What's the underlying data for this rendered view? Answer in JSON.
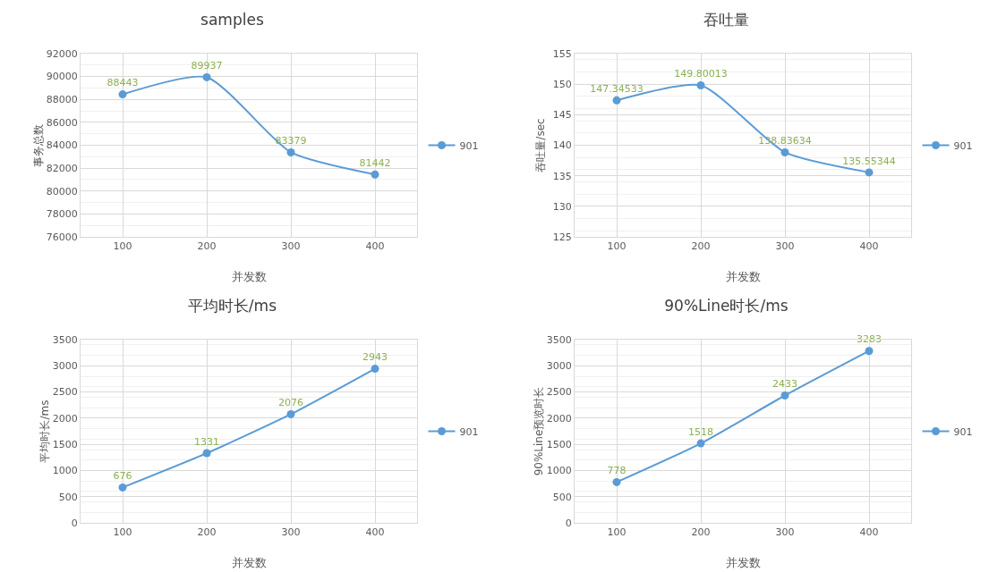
{
  "chart_data": [
    {
      "type": "line",
      "title": "samples",
      "xlabel": "并发数",
      "ylabel": "事务总数",
      "categories": [
        "100",
        "200",
        "300",
        "400"
      ],
      "series": [
        {
          "name": "901",
          "color": "#5b9bd5",
          "values": [
            88443,
            89937,
            83379,
            81442
          ]
        }
      ],
      "ylim": [
        76000,
        92000
      ],
      "yticks": [
        76000,
        78000,
        80000,
        82000,
        84000,
        86000,
        88000,
        90000,
        92000
      ],
      "grid": true,
      "legend": "right",
      "marker": "circle",
      "line_style": "solid",
      "data_labels": true
    },
    {
      "type": "line",
      "title": "吞吐量",
      "xlabel": "并发数",
      "ylabel": "吞吐量/sec",
      "categories": [
        "100",
        "200",
        "300",
        "400"
      ],
      "series": [
        {
          "name": "901",
          "color": "#5b9bd5",
          "values": [
            147.34533,
            149.80013,
            138.83634,
            135.55344
          ]
        }
      ],
      "ylim": [
        125,
        155
      ],
      "yticks": [
        125,
        130,
        135,
        140,
        145,
        150,
        155
      ],
      "grid": true,
      "legend": "right",
      "marker": "circle",
      "line_style": "solid",
      "data_labels": true
    },
    {
      "type": "line",
      "title": "平均时长/ms",
      "xlabel": "并发数",
      "ylabel": "平均时长/ms",
      "categories": [
        "100",
        "200",
        "300",
        "400"
      ],
      "series": [
        {
          "name": "901",
          "color": "#5b9bd5",
          "values": [
            676,
            1331,
            2076,
            2943
          ]
        }
      ],
      "ylim": [
        0,
        3500
      ],
      "yticks": [
        0,
        500,
        1000,
        1500,
        2000,
        2500,
        3000,
        3500
      ],
      "grid": true,
      "legend": "right",
      "marker": "circle",
      "line_style": "solid",
      "data_labels": true
    },
    {
      "type": "line",
      "title": "90%Line时长/ms",
      "xlabel": "并发数",
      "ylabel": "90%Line预览时长",
      "categories": [
        "100",
        "200",
        "300",
        "400"
      ],
      "series": [
        {
          "name": "901",
          "color": "#5b9bd5",
          "values": [
            778,
            1518,
            2433,
            3283
          ]
        }
      ],
      "ylim": [
        0,
        3500
      ],
      "yticks": [
        0,
        500,
        1000,
        1500,
        2000,
        2500,
        3000,
        3500
      ],
      "grid": true,
      "legend": "right",
      "marker": "circle",
      "line_style": "solid",
      "data_labels": true
    }
  ]
}
